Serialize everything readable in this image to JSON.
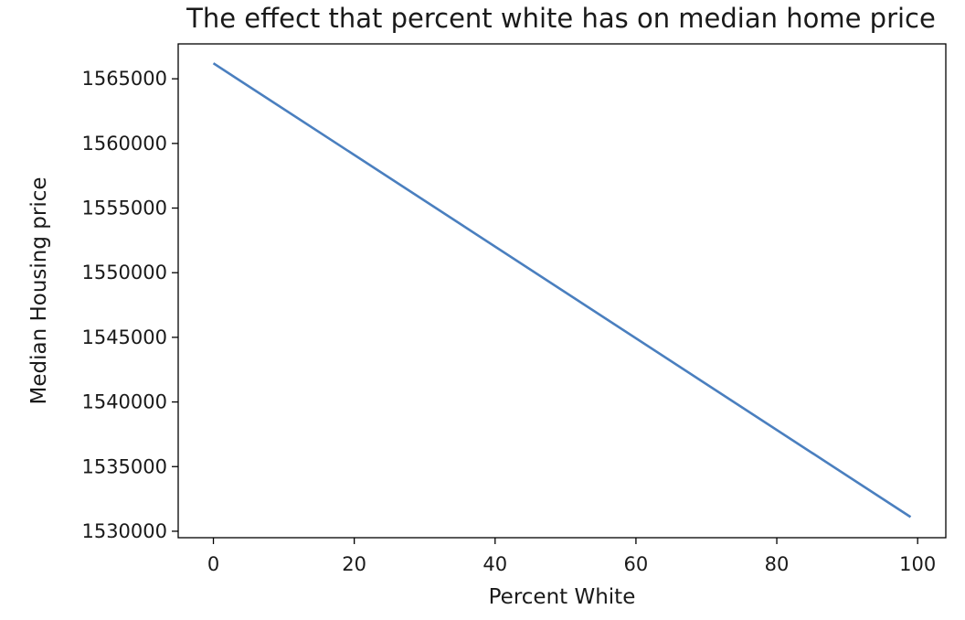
{
  "chart_data": {
    "type": "line",
    "title": "The effect that percent white has on median home price",
    "xlabel": "Percent White",
    "ylabel": "Median Housing price",
    "xlim": [
      -5,
      104
    ],
    "ylim": [
      1529500,
      1567700
    ],
    "x_ticks": [
      0,
      20,
      40,
      60,
      80,
      100
    ],
    "x_tick_labels": [
      "0",
      "20",
      "40",
      "60",
      "80",
      "100"
    ],
    "y_ticks": [
      1530000,
      1535000,
      1540000,
      1545000,
      1550000,
      1555000,
      1560000,
      1565000
    ],
    "y_tick_labels": [
      "1530000",
      "1535000",
      "1540000",
      "1545000",
      "1550000",
      "1555000",
      "1560000",
      "1565000"
    ],
    "grid": false,
    "series": [
      {
        "color": "#4a7fbf",
        "x": [
          0,
          99
        ],
        "y": [
          1566200,
          1531100
        ]
      }
    ]
  }
}
